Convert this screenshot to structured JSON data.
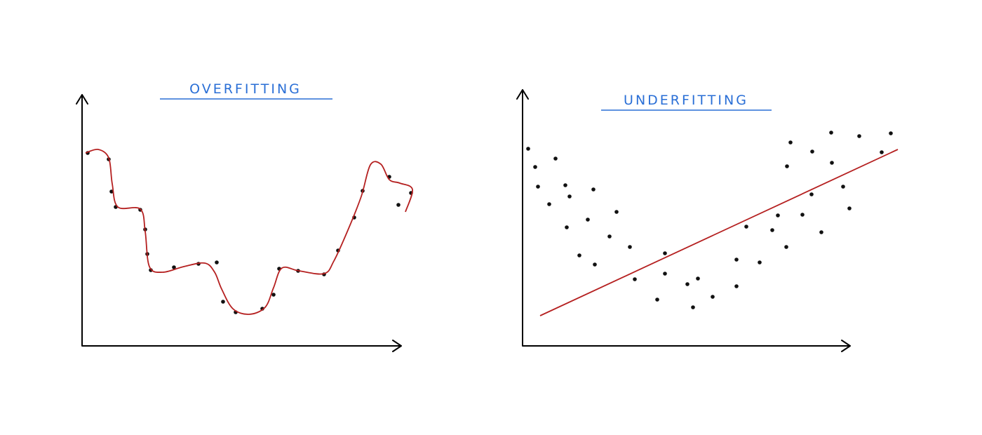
{
  "panels": [
    {
      "title": "OVERFITTING"
    },
    {
      "title": "UNDERFITTING"
    }
  ]
}
